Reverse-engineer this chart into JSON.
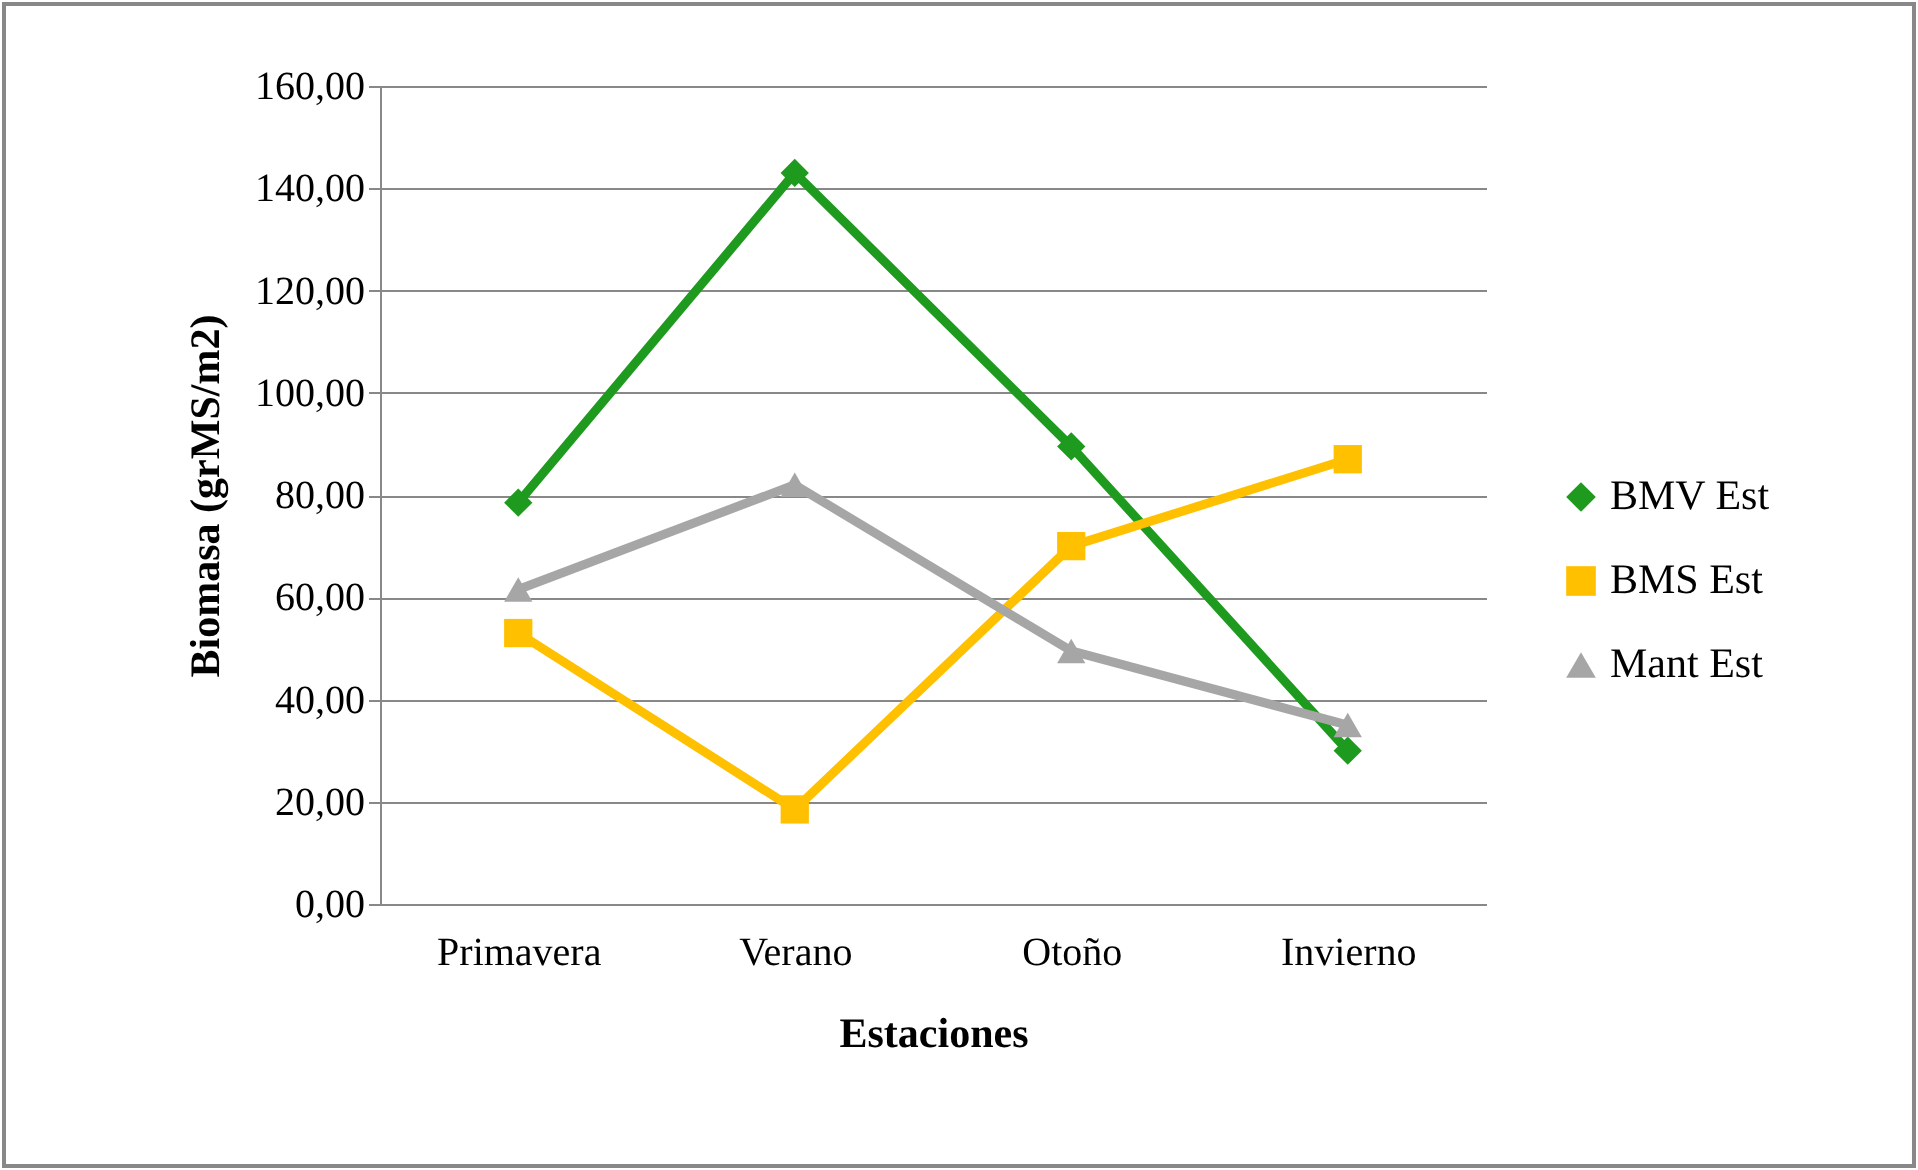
{
  "chart_data": {
    "type": "line",
    "xlabel": "Estaciones",
    "ylabel": "Biomasa (grMS/m2)",
    "categories": [
      "Primavera",
      "Verano",
      "Otoño",
      "Invierno"
    ],
    "series": [
      {
        "name": "BMV Est",
        "color": "#1e9b1e",
        "marker": "diamond",
        "values": [
          78.5,
          143,
          89.5,
          30
        ]
      },
      {
        "name": "BMS Est",
        "color": "#ffc000",
        "marker": "square",
        "values": [
          53,
          18.5,
          70,
          87
        ]
      },
      {
        "name": "Mant Est",
        "color": "#a6a6a6",
        "marker": "triangle",
        "values": [
          61.5,
          82,
          49.5,
          35
        ]
      }
    ],
    "ylim": [
      0,
      160
    ],
    "yticks": [
      {
        "value": 0,
        "label": "0,00"
      },
      {
        "value": 20,
        "label": "20,00"
      },
      {
        "value": 40,
        "label": "40,00"
      },
      {
        "value": 60,
        "label": "60,00"
      },
      {
        "value": 80,
        "label": "80,00"
      },
      {
        "value": 100,
        "label": "100,00"
      },
      {
        "value": 120,
        "label": "120,00"
      },
      {
        "value": 140,
        "label": "140,00"
      },
      {
        "value": 160,
        "label": "160,00"
      }
    ],
    "grid": "y",
    "legend": "right"
  }
}
